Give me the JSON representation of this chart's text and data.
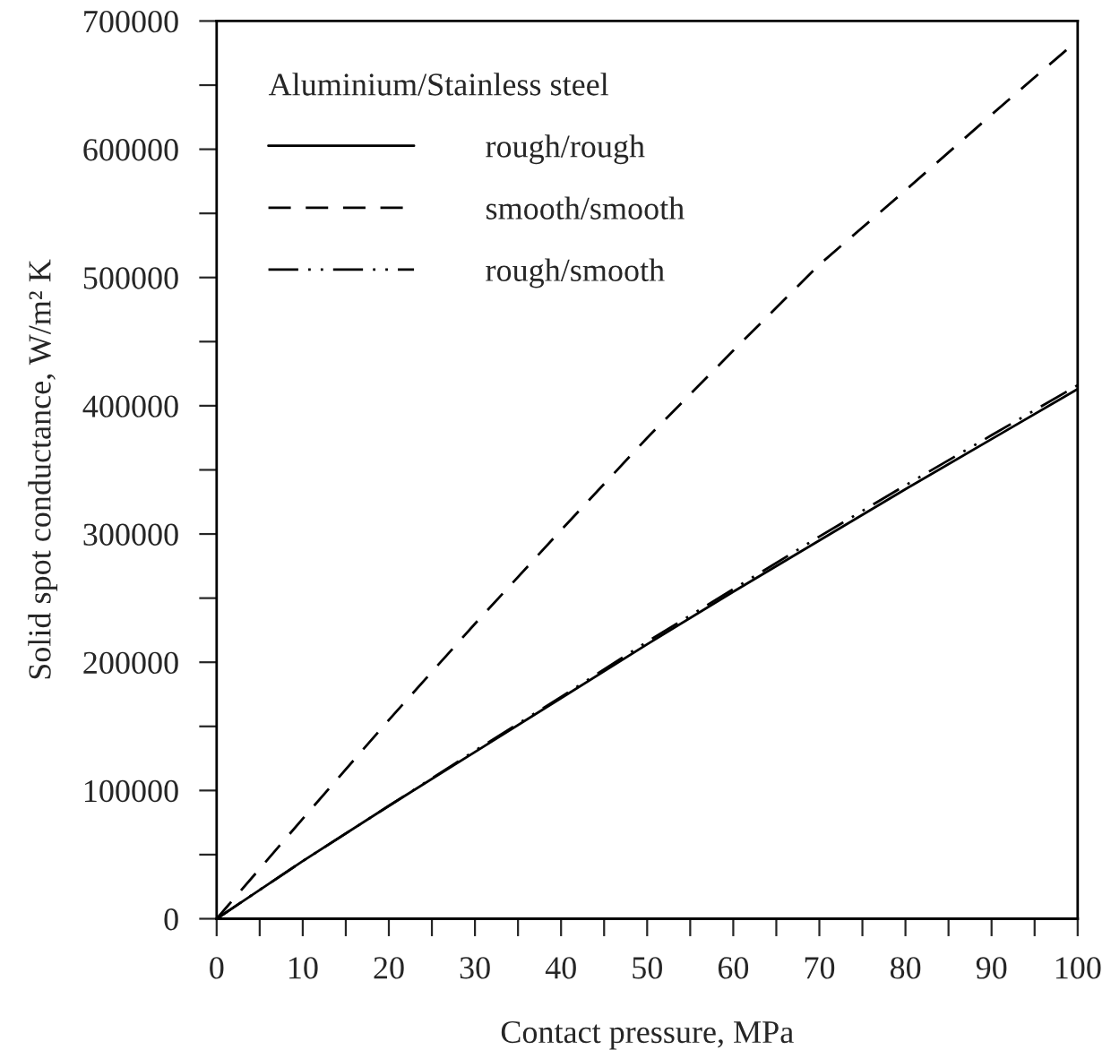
{
  "chart_data": {
    "type": "line",
    "xlabel": "Contact pressure, MPa",
    "ylabel": "Solid spot conductance, W/m² K",
    "legend_title": "Aluminium/Stainless steel",
    "legend": "top left",
    "grid": false,
    "marker": "none",
    "x": [
      0,
      10,
      20,
      30,
      40,
      50,
      60,
      70,
      80,
      90,
      100
    ],
    "series": [
      {
        "name": "rough/rough",
        "color": "#000000",
        "line_style": "solid",
        "values": [
          0,
          45000,
          88000,
          130000,
          172000,
          214000,
          255000,
          295000,
          335000,
          374000,
          413000
        ]
      },
      {
        "name": "smooth/smooth",
        "color": "#000000",
        "line_style": "dashed",
        "values": [
          0,
          78000,
          155000,
          230000,
          303000,
          375000,
          443000,
          510000,
          568000,
          627000,
          685000
        ]
      },
      {
        "name": "rough/smooth",
        "color": "#000000",
        "line_style": "dashdot",
        "values": [
          0,
          45000,
          88000,
          131000,
          173000,
          216000,
          257000,
          298000,
          338000,
          377000,
          416000
        ]
      }
    ],
    "xlim": [
      0,
      100
    ],
    "ylim": [
      0,
      700000
    ],
    "xticks": [
      0,
      {
        "value": 5,
        "label": null
      },
      10,
      {
        "value": 15,
        "label": null
      },
      20,
      {
        "value": 25,
        "label": null
      },
      30,
      {
        "value": 35,
        "label": null
      },
      40,
      {
        "value": 45,
        "label": null
      },
      50,
      {
        "value": 55,
        "label": null
      },
      60,
      {
        "value": 65,
        "label": null
      },
      70,
      {
        "value": 75,
        "label": null
      },
      80,
      {
        "value": 85,
        "label": null
      },
      90,
      {
        "value": 95,
        "label": null
      },
      100
    ],
    "yticks": [
      0,
      {
        "value": 50000,
        "label": null
      },
      100000,
      {
        "value": 150000,
        "label": null
      },
      200000,
      {
        "value": 250000,
        "label": null
      },
      300000,
      {
        "value": 350000,
        "label": null
      },
      400000,
      {
        "value": 450000,
        "label": null
      },
      500000,
      {
        "value": 550000,
        "label": null
      },
      600000,
      {
        "value": 650000,
        "label": null
      },
      700000
    ]
  }
}
